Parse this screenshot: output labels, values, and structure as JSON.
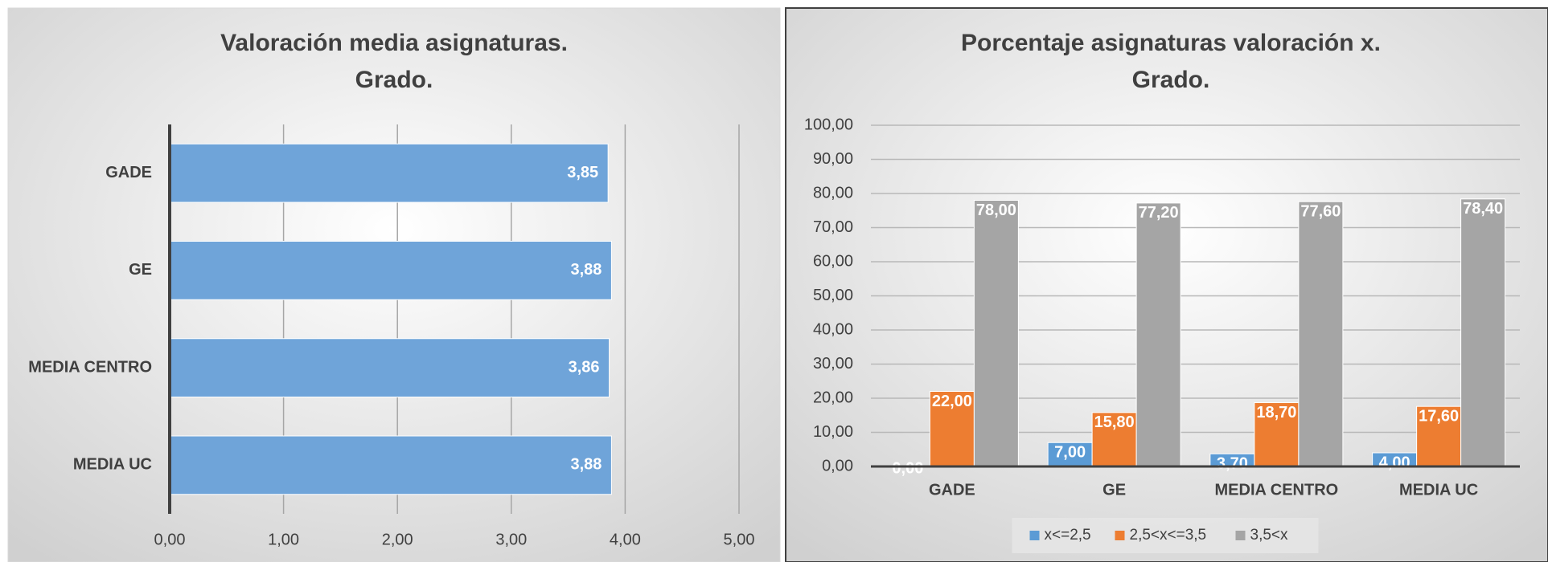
{
  "chart_data": [
    {
      "type": "bar",
      "orientation": "horizontal",
      "title": "Valoración media asignaturas.",
      "subtitle": "Grado.",
      "categories": [
        "GADE",
        "GE",
        "MEDIA CENTRO",
        "MEDIA UC"
      ],
      "values": [
        3.85,
        3.88,
        3.86,
        3.88
      ],
      "value_labels": [
        "3,85",
        "3,88",
        "3,86",
        "3,88"
      ],
      "color": "#6fa4d9",
      "xlim": [
        0,
        5
      ],
      "xticks": [
        {
          "value": 0,
          "label": "0,00"
        },
        {
          "value": 1,
          "label": "1,00"
        },
        {
          "value": 2,
          "label": "2,00"
        },
        {
          "value": 3,
          "label": "3,00"
        },
        {
          "value": 4,
          "label": "4,00"
        },
        {
          "value": 5,
          "label": "5,00"
        }
      ],
      "grid": true
    },
    {
      "type": "bar",
      "title": "Porcentaje asignaturas valoración x.",
      "subtitle": "Grado.",
      "categories": [
        "GADE",
        "GE",
        "MEDIA CENTRO",
        "MEDIA UC"
      ],
      "series": [
        {
          "name": "x<=2,5",
          "color": "#5b9bd5",
          "values": [
            0,
            7,
            3.7,
            4
          ],
          "value_labels": [
            "0,00",
            "7,00",
            "3,70",
            "4,00"
          ]
        },
        {
          "name": "2,5<x<=3,5",
          "color": "#ed7d31",
          "values": [
            22,
            15.8,
            18.7,
            17.6
          ],
          "value_labels": [
            "22,00",
            "15,80",
            "18,70",
            "17,60"
          ]
        },
        {
          "name": "3,5<x",
          "color": "#a5a5a5",
          "values": [
            78,
            77.2,
            77.6,
            78.4
          ],
          "value_labels": [
            "78,00",
            "77,20",
            "77,60",
            "78,40"
          ]
        }
      ],
      "ylim": [
        0,
        100
      ],
      "yticks": [
        {
          "value": 0,
          "label": "0,00"
        },
        {
          "value": 10,
          "label": "10,00"
        },
        {
          "value": 20,
          "label": "20,00"
        },
        {
          "value": 30,
          "label": "30,00"
        },
        {
          "value": 40,
          "label": "40,00"
        },
        {
          "value": 50,
          "label": "50,00"
        },
        {
          "value": 60,
          "label": "60,00"
        },
        {
          "value": 70,
          "label": "70,00"
        },
        {
          "value": 80,
          "label": "80,00"
        },
        {
          "value": 90,
          "label": "90,00"
        },
        {
          "value": 100,
          "label": "100,00"
        }
      ],
      "grid": true,
      "legend": "bottom"
    }
  ]
}
